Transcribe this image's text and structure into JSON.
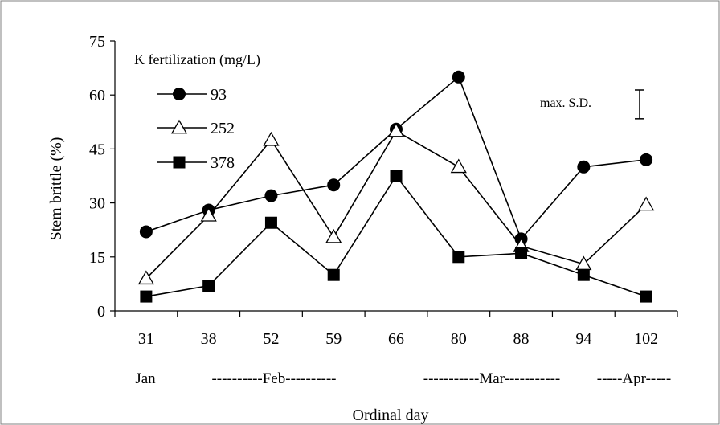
{
  "chart_data": {
    "type": "line",
    "ylabel": "Stem brittle (%)",
    "xlabel": "Ordinal day",
    "categories": [
      "31",
      "38",
      "52",
      "59",
      "66",
      "80",
      "88",
      "94",
      "102"
    ],
    "ylim": [
      0,
      75
    ],
    "yticks": [
      "0",
      "15",
      "30",
      "45",
      "60",
      "75"
    ],
    "month_labels": [
      "Jan",
      "----------Feb----------",
      "-----------Mar-----------",
      "-----Apr-----"
    ],
    "legend_title": "K fertilization (mg/L)",
    "legend_position": "top-left",
    "annotation": "max. S.D.",
    "error_bar_magnitude": 8,
    "grid": false,
    "series": [
      {
        "name": "93",
        "marker": "circle",
        "values": [
          22,
          28,
          32,
          35,
          50.5,
          65,
          20,
          40,
          42
        ]
      },
      {
        "name": "252",
        "marker": "triangle",
        "values": [
          9,
          26.5,
          47.5,
          20.5,
          50,
          40,
          18,
          13,
          29.5
        ]
      },
      {
        "name": "378",
        "marker": "square",
        "values": [
          4,
          7,
          24.5,
          10,
          37.5,
          15,
          16,
          10,
          4
        ]
      }
    ]
  }
}
